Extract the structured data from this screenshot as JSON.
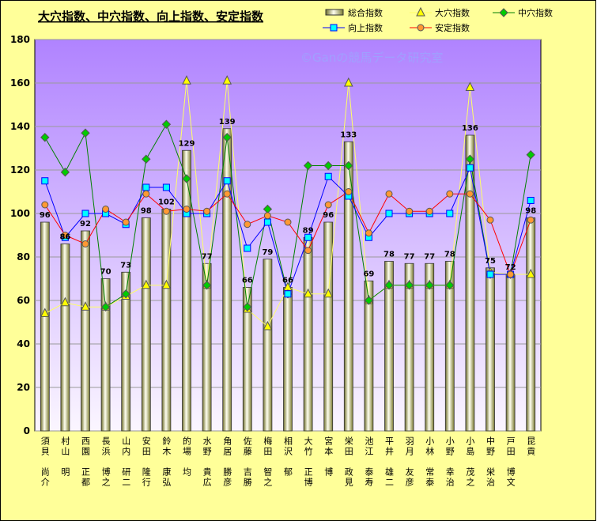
{
  "chart_data": {
    "type": "bar-line",
    "title": "大穴指数、中穴指数、向上指数、安定指数",
    "watermark": "©Ganの競馬データ研究室",
    "categories": [
      "須貝　尚介",
      "村山　明",
      "西園　正都",
      "長浜　博之",
      "山内　研二",
      "安田　隆行",
      "鈴木　康弘",
      "的場　均",
      "水野　貴広",
      "角居　勝彦",
      "佐藤　吉勝",
      "梅田　智之",
      "相沢　郁",
      "大竹　正博",
      "宮本　博",
      "栄田　政見",
      "池江　泰寿",
      "平井　雄二",
      "羽月　友彦",
      "小林　常泰",
      "小野　幸治",
      "小島　茂之",
      "中野　栄治",
      "戸田　博文",
      "昆貢"
    ],
    "ylim": [
      0,
      180
    ],
    "yticks": [
      0,
      20,
      40,
      60,
      80,
      100,
      120,
      140,
      160,
      180
    ],
    "grid": true,
    "series": [
      {
        "name": "総合指数",
        "kind": "bar",
        "color": "#8a8a3a",
        "data_labels": true,
        "values": [
          96,
          86,
          92,
          70,
          73,
          98,
          102,
          129,
          77,
          139,
          66,
          79,
          66,
          89,
          96,
          133,
          69,
          78,
          77,
          77,
          78,
          136,
          75,
          72,
          98
        ]
      },
      {
        "name": "大穴指数",
        "kind": "line",
        "marker": "triangle",
        "color": "#ffff00",
        "line_color": "#ffff66",
        "values": [
          54,
          59,
          57,
          57,
          62,
          67,
          67,
          161,
          67,
          161,
          56,
          48,
          66,
          63,
          63,
          160,
          60,
          67,
          67,
          67,
          67,
          158,
          73,
          72,
          72
        ]
      },
      {
        "name": "中穴指数",
        "kind": "line",
        "marker": "diamond",
        "color": "#00cc00",
        "line_color": "#008000",
        "values": [
          135,
          119,
          137,
          57,
          63,
          125,
          141,
          116,
          67,
          135,
          57,
          102,
          63,
          122,
          122,
          122,
          60,
          67,
          67,
          67,
          67,
          125,
          72,
          72,
          127
        ]
      },
      {
        "name": "向上指数",
        "kind": "line",
        "marker": "square",
        "color": "#00ffff",
        "line_color": "#0000ff",
        "values": [
          115,
          89,
          100,
          100,
          95,
          112,
          112,
          100,
          100,
          115,
          84,
          96,
          63,
          89,
          117,
          108,
          89,
          100,
          100,
          100,
          100,
          121,
          72,
          72,
          106
        ]
      },
      {
        "name": "安定指数",
        "kind": "line",
        "marker": "circle",
        "color": "#ff9933",
        "line_color": "#ff0000",
        "values": [
          104,
          90,
          86,
          102,
          96,
          109,
          101,
          102,
          101,
          109,
          95,
          99,
          96,
          83,
          104,
          110,
          91,
          109,
          101,
          101,
          109,
          109,
          97,
          72,
          97
        ]
      }
    ]
  }
}
